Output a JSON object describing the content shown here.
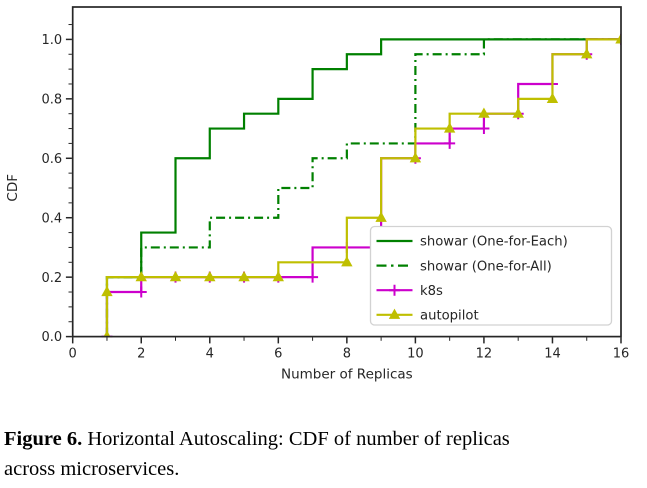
{
  "figure": {
    "caption_label": "Figure 6.",
    "caption_line1": " Horizontal Autoscaling: CDF of number of replicas",
    "caption_line2": "across microservices."
  },
  "chart_data": {
    "type": "line",
    "subtype": "step-cdf",
    "title": "",
    "xlabel": "Number of Replicas",
    "ylabel": "CDF",
    "xlim": [
      0,
      16
    ],
    "ylim": [
      0,
      1.05
    ],
    "xticks": [
      "0",
      "2",
      "4",
      "6",
      "8",
      "10",
      "12",
      "14",
      "16"
    ],
    "xtick_values": [
      0,
      2,
      4,
      6,
      8,
      10,
      12,
      14,
      16
    ],
    "yticks": [
      "0.0",
      "0.2",
      "0.4",
      "0.6",
      "0.8",
      "1.0"
    ],
    "ytick_values": [
      0.0,
      0.2,
      0.4,
      0.6,
      0.8,
      1.0
    ],
    "minor_x_ticks": [
      1,
      3,
      5,
      7,
      9,
      11,
      13,
      15
    ],
    "minor_y_step": 0.05,
    "grid": false,
    "legend_position": "inside lower-right",
    "axis_color": "#262626",
    "series": [
      {
        "name": "showar (One-for-Each)",
        "color": "#008000",
        "line_style": "solid",
        "marker": "none",
        "start_x": 1,
        "end_x": 16,
        "steps": [
          [
            1,
            0.2
          ],
          [
            2,
            0.35
          ],
          [
            3,
            0.6
          ],
          [
            4,
            0.7
          ],
          [
            5,
            0.75
          ],
          [
            6,
            0.8
          ],
          [
            7,
            0.9
          ],
          [
            8,
            0.95
          ],
          [
            9,
            1.0
          ]
        ],
        "markers_at": []
      },
      {
        "name": "showar (One-for-All)",
        "color": "#008000",
        "line_style": "dashdot",
        "marker": "none",
        "start_x": 1,
        "end_x": 16,
        "steps": [
          [
            1,
            0.2
          ],
          [
            2,
            0.3
          ],
          [
            4,
            0.4
          ],
          [
            6,
            0.5
          ],
          [
            7,
            0.6
          ],
          [
            8,
            0.65
          ],
          [
            10,
            0.95
          ],
          [
            12,
            1.0
          ]
        ],
        "markers_at": []
      },
      {
        "name": "k8s",
        "color": "#cc00cc",
        "line_style": "solid",
        "marker": "plus",
        "start_x": 1,
        "end_x": 16,
        "steps": [
          [
            1,
            0.15
          ],
          [
            2,
            0.2
          ],
          [
            7,
            0.3
          ],
          [
            9,
            0.6
          ],
          [
            10,
            0.65
          ],
          [
            11,
            0.7
          ],
          [
            12,
            0.75
          ],
          [
            13,
            0.85
          ],
          [
            14,
            0.95
          ],
          [
            15,
            1.0
          ]
        ],
        "markers_at": [
          [
            1,
            0
          ],
          [
            2,
            0.15
          ],
          [
            3,
            0.2
          ],
          [
            4,
            0.2
          ],
          [
            5,
            0.2
          ],
          [
            6,
            0.2
          ],
          [
            7,
            0.2
          ],
          [
            8,
            0.3
          ],
          [
            9,
            0.3
          ],
          [
            10,
            0.6
          ],
          [
            11,
            0.65
          ],
          [
            12,
            0.7
          ],
          [
            13,
            0.75
          ],
          [
            14,
            0.85
          ],
          [
            15,
            0.95
          ],
          [
            16,
            1.0
          ]
        ]
      },
      {
        "name": "autopilot",
        "color": "#bfbf00",
        "line_style": "solid",
        "marker": "triangle-up",
        "start_x": 1,
        "end_x": 16,
        "steps": [
          [
            1,
            0.2
          ],
          [
            6,
            0.25
          ],
          [
            8,
            0.4
          ],
          [
            9,
            0.6
          ],
          [
            10,
            0.7
          ],
          [
            11,
            0.75
          ],
          [
            13,
            0.8
          ],
          [
            14,
            0.95
          ],
          [
            15,
            1.0
          ]
        ],
        "markers_at": [
          [
            1,
            0
          ],
          [
            1,
            0.15
          ],
          [
            2,
            0.2
          ],
          [
            3,
            0.2
          ],
          [
            4,
            0.2
          ],
          [
            5,
            0.2
          ],
          [
            6,
            0.2
          ],
          [
            8,
            0.25
          ],
          [
            9,
            0.4
          ],
          [
            10,
            0.6
          ],
          [
            11,
            0.7
          ],
          [
            12,
            0.75
          ],
          [
            13,
            0.75
          ],
          [
            14,
            0.8
          ],
          [
            15,
            0.95
          ],
          [
            16,
            1.0
          ]
        ]
      }
    ]
  }
}
